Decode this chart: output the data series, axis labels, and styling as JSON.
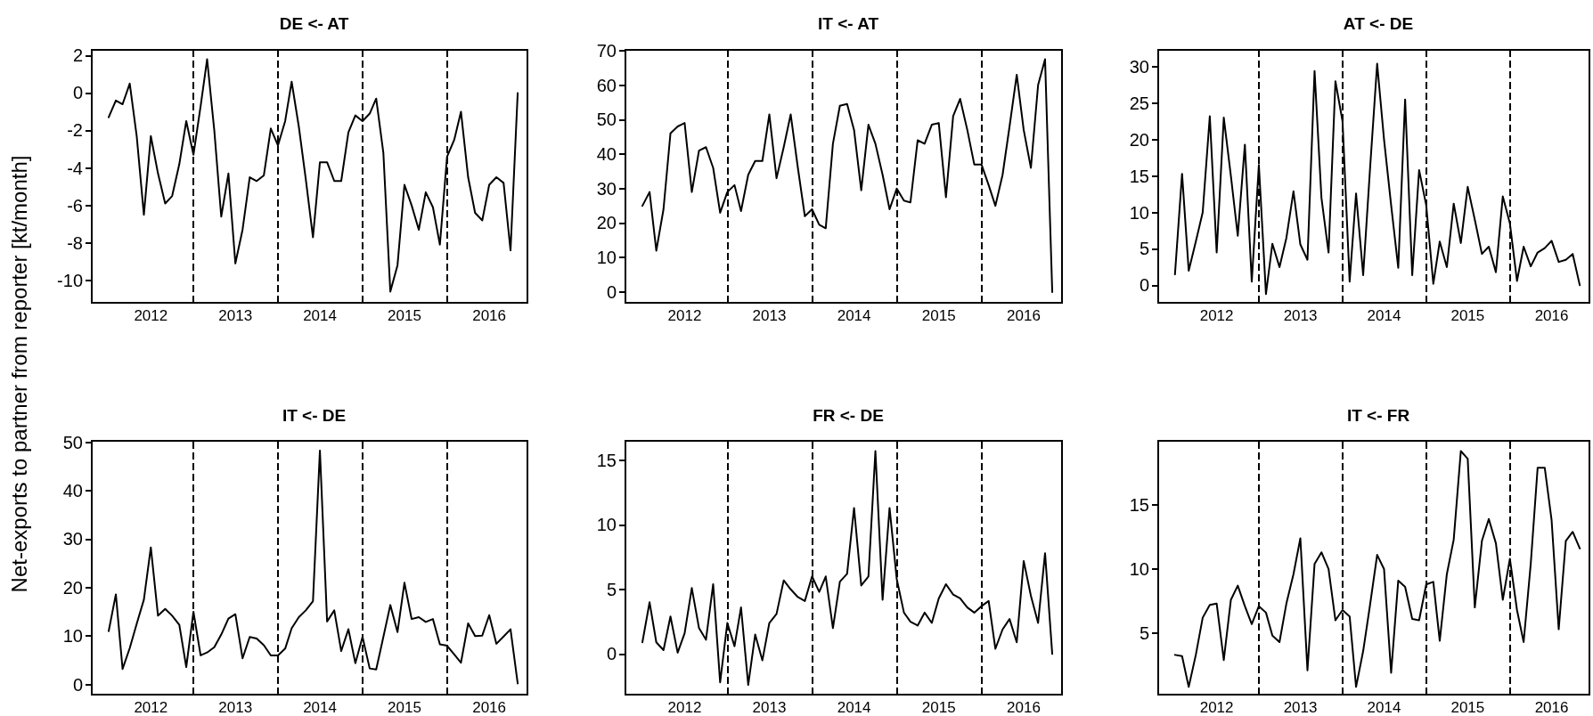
{
  "chart_data": [
    {
      "type": "line",
      "title": "DE <- AT",
      "ylabel": "Net-exports to partner from reporter [kt/month]",
      "marker": "none",
      "grid": false,
      "x": [
        "2012-01",
        "2012-02",
        "2012-03",
        "2012-04",
        "2012-05",
        "2012-06",
        "2012-07",
        "2012-08",
        "2012-09",
        "2012-10",
        "2012-11",
        "2012-12",
        "2013-01",
        "2013-02",
        "2013-03",
        "2013-04",
        "2013-05",
        "2013-06",
        "2013-07",
        "2013-08",
        "2013-09",
        "2013-10",
        "2013-11",
        "2013-12",
        "2014-01",
        "2014-02",
        "2014-03",
        "2014-04",
        "2014-05",
        "2014-06",
        "2014-07",
        "2014-08",
        "2014-09",
        "2014-10",
        "2014-11",
        "2014-12",
        "2015-01",
        "2015-02",
        "2015-03",
        "2015-04",
        "2015-05",
        "2015-06",
        "2015-07",
        "2015-08",
        "2015-09",
        "2015-10",
        "2015-11",
        "2015-12",
        "2016-01",
        "2016-02",
        "2016-03",
        "2016-04",
        "2016-05",
        "2016-06",
        "2016-07",
        "2016-08",
        "2016-09",
        "2016-10",
        "2016-11"
      ],
      "series": [
        {
          "color": "#000000",
          "values": [
            -1.3,
            -0.4,
            -0.6,
            0.5,
            -2.3,
            -6.5,
            -2.3,
            -4.3,
            -5.9,
            -5.5,
            -3.8,
            -1.5,
            -3.3,
            -0.7,
            1.8,
            -2.0,
            -6.6,
            -4.3,
            -9.1,
            -7.3,
            -4.5,
            -4.7,
            -4.4,
            -1.9,
            -2.8,
            -1.5,
            0.6,
            -1.8,
            -4.6,
            -7.7,
            -3.7,
            -3.7,
            -4.7,
            -4.7,
            -2.1,
            -1.2,
            -1.5,
            -1.1,
            -0.3,
            -3.2,
            -10.6,
            -9.2,
            -4.9,
            -6.0,
            -7.3,
            -5.3,
            -6.1,
            -8.1,
            -3.4,
            -2.5,
            -1.0,
            -4.5,
            -6.4,
            -6.8,
            -4.9,
            -4.5,
            -4.8,
            -8.4,
            0.0
          ]
        }
      ],
      "xlim": [
        "2011-10-20",
        "2016-12-13"
      ],
      "xticks": [
        {
          "value": "2012-07-01",
          "label": "2012"
        },
        {
          "value": "2013-07-01",
          "label": "2013"
        },
        {
          "value": "2014-07-01",
          "label": "2014"
        },
        {
          "value": "2015-07-01",
          "label": "2015"
        },
        {
          "value": "2016-07-01",
          "label": "2016"
        }
      ],
      "ylim": [
        -11.2,
        2.3
      ],
      "yticks": [
        -10,
        -8,
        -6,
        -4,
        -2,
        0,
        2
      ],
      "ref_lines": [
        {
          "axis": "x",
          "value": "2013-01-01",
          "color": "#000000",
          "line_style": "dashed"
        },
        {
          "axis": "x",
          "value": "2014-01-01",
          "color": "#000000",
          "line_style": "dashed"
        },
        {
          "axis": "x",
          "value": "2015-01-01",
          "color": "#000000",
          "line_style": "dashed"
        },
        {
          "axis": "x",
          "value": "2016-01-01",
          "color": "#000000",
          "line_style": "dashed"
        }
      ]
    },
    {
      "type": "line",
      "title": "IT <- AT",
      "marker": "none",
      "grid": false,
      "x": [
        "2012-01",
        "2012-02",
        "2012-03",
        "2012-04",
        "2012-05",
        "2012-06",
        "2012-07",
        "2012-08",
        "2012-09",
        "2012-10",
        "2012-11",
        "2012-12",
        "2013-01",
        "2013-02",
        "2013-03",
        "2013-04",
        "2013-05",
        "2013-06",
        "2013-07",
        "2013-08",
        "2013-09",
        "2013-10",
        "2013-11",
        "2013-12",
        "2014-01",
        "2014-02",
        "2014-03",
        "2014-04",
        "2014-05",
        "2014-06",
        "2014-07",
        "2014-08",
        "2014-09",
        "2014-10",
        "2014-11",
        "2014-12",
        "2015-01",
        "2015-02",
        "2015-03",
        "2015-04",
        "2015-05",
        "2015-06",
        "2015-07",
        "2015-08",
        "2015-09",
        "2015-10",
        "2015-11",
        "2015-12",
        "2016-01",
        "2016-02",
        "2016-03",
        "2016-04",
        "2016-05",
        "2016-06",
        "2016-07",
        "2016-08",
        "2016-09",
        "2016-10",
        "2016-11"
      ],
      "series": [
        {
          "color": "#000000",
          "values": [
            25,
            29,
            12,
            24,
            46,
            48,
            49,
            29,
            41,
            42,
            36,
            23,
            29,
            31,
            23.5,
            34,
            38,
            38,
            51.5,
            33,
            42,
            51.5,
            36,
            22,
            24,
            19.5,
            18.5,
            43,
            54,
            54.5,
            47,
            29.5,
            48.5,
            43,
            34,
            24,
            30,
            26.5,
            26,
            44,
            43,
            48.5,
            49,
            27.5,
            51,
            56,
            47,
            37,
            37,
            31,
            25,
            34,
            48,
            63,
            47,
            36,
            60,
            67.5,
            0
          ]
        }
      ],
      "xlim": [
        "2011-10-20",
        "2016-12-13"
      ],
      "xticks": [
        {
          "value": "2012-07-01",
          "label": "2012"
        },
        {
          "value": "2013-07-01",
          "label": "2013"
        },
        {
          "value": "2014-07-01",
          "label": "2014"
        },
        {
          "value": "2015-07-01",
          "label": "2015"
        },
        {
          "value": "2016-07-01",
          "label": "2016"
        }
      ],
      "ylim": [
        -3.1,
        70.2
      ],
      "yticks": [
        0,
        10,
        20,
        30,
        40,
        50,
        60,
        70
      ],
      "ref_lines": [
        {
          "axis": "x",
          "value": "2013-01-01",
          "color": "#000000",
          "line_style": "dashed"
        },
        {
          "axis": "x",
          "value": "2014-01-01",
          "color": "#000000",
          "line_style": "dashed"
        },
        {
          "axis": "x",
          "value": "2015-01-01",
          "color": "#000000",
          "line_style": "dashed"
        },
        {
          "axis": "x",
          "value": "2016-01-01",
          "color": "#000000",
          "line_style": "dashed"
        }
      ]
    },
    {
      "type": "line",
      "title": "AT <- DE",
      "marker": "none",
      "grid": false,
      "x": [
        "2012-01",
        "2012-02",
        "2012-03",
        "2012-04",
        "2012-05",
        "2012-06",
        "2012-07",
        "2012-08",
        "2012-09",
        "2012-10",
        "2012-11",
        "2012-12",
        "2013-01",
        "2013-02",
        "2013-03",
        "2013-04",
        "2013-05",
        "2013-06",
        "2013-07",
        "2013-08",
        "2013-09",
        "2013-10",
        "2013-11",
        "2013-12",
        "2014-01",
        "2014-02",
        "2014-03",
        "2014-04",
        "2014-05",
        "2014-06",
        "2014-07",
        "2014-08",
        "2014-09",
        "2014-10",
        "2014-11",
        "2014-12",
        "2015-01",
        "2015-02",
        "2015-03",
        "2015-04",
        "2015-05",
        "2015-06",
        "2015-07",
        "2015-08",
        "2015-09",
        "2015-10",
        "2015-11",
        "2015-12",
        "2016-01",
        "2016-02",
        "2016-03",
        "2016-04",
        "2016-05",
        "2016-06",
        "2016-07",
        "2016-08",
        "2016-09",
        "2016-10",
        "2016-11"
      ],
      "series": [
        {
          "color": "#000000",
          "values": [
            1.5,
            15.3,
            2,
            6,
            10,
            23.2,
            4.5,
            23,
            15,
            6.8,
            19.3,
            0.5,
            16.5,
            -1.2,
            5.7,
            2.5,
            6.5,
            12.9,
            5.6,
            3.5,
            29.4,
            12,
            4.5,
            28,
            22.5,
            0.5,
            12.6,
            1.4,
            16,
            30.4,
            20,
            11,
            2.4,
            25.5,
            1.4,
            15.8,
            11,
            0.2,
            6,
            2.5,
            11.2,
            5.8,
            13.5,
            9,
            4.3,
            5.3,
            1.8,
            12.2,
            8.5,
            0.6,
            5.3,
            2.6,
            4.5,
            5.1,
            6.1,
            3.2,
            3.5,
            4.3,
            0
          ]
        }
      ],
      "xlim": [
        "2011-10-20",
        "2016-12-13"
      ],
      "xticks": [
        {
          "value": "2012-07-01",
          "label": "2012"
        },
        {
          "value": "2013-07-01",
          "label": "2013"
        },
        {
          "value": "2014-07-01",
          "label": "2014"
        },
        {
          "value": "2015-07-01",
          "label": "2015"
        },
        {
          "value": "2016-07-01",
          "label": "2016"
        }
      ],
      "ylim": [
        -2.4,
        32.3
      ],
      "yticks": [
        0,
        5,
        10,
        15,
        20,
        25,
        30
      ],
      "ref_lines": [
        {
          "axis": "x",
          "value": "2013-01-01",
          "color": "#000000",
          "line_style": "dashed"
        },
        {
          "axis": "x",
          "value": "2014-01-01",
          "color": "#000000",
          "line_style": "dashed"
        },
        {
          "axis": "x",
          "value": "2015-01-01",
          "color": "#000000",
          "line_style": "dashed"
        },
        {
          "axis": "x",
          "value": "2016-01-01",
          "color": "#000000",
          "line_style": "dashed"
        }
      ]
    },
    {
      "type": "line",
      "title": "IT <- DE",
      "marker": "none",
      "grid": false,
      "x": [
        "2012-01",
        "2012-02",
        "2012-03",
        "2012-04",
        "2012-05",
        "2012-06",
        "2012-07",
        "2012-08",
        "2012-09",
        "2012-10",
        "2012-11",
        "2012-12",
        "2013-01",
        "2013-02",
        "2013-03",
        "2013-04",
        "2013-05",
        "2013-06",
        "2013-07",
        "2013-08",
        "2013-09",
        "2013-10",
        "2013-11",
        "2013-12",
        "2014-01",
        "2014-02",
        "2014-03",
        "2014-04",
        "2014-05",
        "2014-06",
        "2014-07",
        "2014-08",
        "2014-09",
        "2014-10",
        "2014-11",
        "2014-12",
        "2015-01",
        "2015-02",
        "2015-03",
        "2015-04",
        "2015-05",
        "2015-06",
        "2015-07",
        "2015-08",
        "2015-09",
        "2015-10",
        "2015-11",
        "2015-12",
        "2016-01",
        "2016-02",
        "2016-03",
        "2016-04",
        "2016-05",
        "2016-06",
        "2016-07",
        "2016-08",
        "2016-09",
        "2016-10",
        "2016-11"
      ],
      "series": [
        {
          "color": "#000000",
          "values": [
            11,
            18.6,
            3.2,
            7.5,
            12.5,
            17.5,
            28.3,
            14.2,
            15.6,
            14.2,
            12.3,
            3.6,
            15,
            6,
            6.6,
            7.7,
            10.3,
            13.6,
            14.5,
            5.4,
            9.8,
            9.5,
            8.1,
            6,
            6,
            7.4,
            11.6,
            13.9,
            15.3,
            17.2,
            48.3,
            13,
            15.3,
            6.9,
            11.4,
            4.4,
            9.8,
            3.3,
            3.1,
            9.8,
            16.4,
            10.8,
            21,
            13.5,
            13.9,
            12.9,
            13.5,
            8.3,
            8,
            6.2,
            4.5,
            12.6,
            10,
            10.1,
            14.3,
            8.4,
            9.9,
            11.4,
            0.2
          ]
        }
      ],
      "xlim": [
        "2011-10-20",
        "2016-12-13"
      ],
      "xticks": [
        {
          "value": "2012-07-01",
          "label": "2012"
        },
        {
          "value": "2013-07-01",
          "label": "2013"
        },
        {
          "value": "2014-07-01",
          "label": "2014"
        },
        {
          "value": "2015-07-01",
          "label": "2015"
        },
        {
          "value": "2016-07-01",
          "label": "2016"
        }
      ],
      "ylim": [
        -2.1,
        50.3
      ],
      "yticks": [
        0,
        10,
        20,
        30,
        40,
        50
      ],
      "ref_lines": [
        {
          "axis": "x",
          "value": "2013-01-01",
          "color": "#000000",
          "line_style": "dashed"
        },
        {
          "axis": "x",
          "value": "2014-01-01",
          "color": "#000000",
          "line_style": "dashed"
        },
        {
          "axis": "x",
          "value": "2015-01-01",
          "color": "#000000",
          "line_style": "dashed"
        },
        {
          "axis": "x",
          "value": "2016-01-01",
          "color": "#000000",
          "line_style": "dashed"
        }
      ]
    },
    {
      "type": "line",
      "title": "FR <- DE",
      "marker": "none",
      "grid": false,
      "x": [
        "2012-01",
        "2012-02",
        "2012-03",
        "2012-04",
        "2012-05",
        "2012-06",
        "2012-07",
        "2012-08",
        "2012-09",
        "2012-10",
        "2012-11",
        "2012-12",
        "2013-01",
        "2013-02",
        "2013-03",
        "2013-04",
        "2013-05",
        "2013-06",
        "2013-07",
        "2013-08",
        "2013-09",
        "2013-10",
        "2013-11",
        "2013-12",
        "2014-01",
        "2014-02",
        "2014-03",
        "2014-04",
        "2014-05",
        "2014-06",
        "2014-07",
        "2014-08",
        "2014-09",
        "2014-10",
        "2014-11",
        "2014-12",
        "2015-01",
        "2015-02",
        "2015-03",
        "2015-04",
        "2015-05",
        "2015-06",
        "2015-07",
        "2015-08",
        "2015-09",
        "2015-10",
        "2015-11",
        "2015-12",
        "2016-01",
        "2016-02",
        "2016-03",
        "2016-04",
        "2016-05",
        "2016-06",
        "2016-07",
        "2016-08",
        "2016-09",
        "2016-10",
        "2016-11"
      ],
      "series": [
        {
          "color": "#000000",
          "values": [
            0.9,
            4,
            0.9,
            0.3,
            2.9,
            0.1,
            1.6,
            5.1,
            2,
            1.1,
            5.4,
            -2.2,
            2.4,
            0.6,
            3.6,
            -2.4,
            1.5,
            -0.5,
            2.4,
            3.1,
            5.7,
            5,
            4.4,
            4.1,
            6,
            4.8,
            6,
            2,
            5.6,
            6.2,
            11.3,
            5.3,
            6,
            15.7,
            4.2,
            11.3,
            5.8,
            3.2,
            2.5,
            2.2,
            3.2,
            2.4,
            4.3,
            5.4,
            4.6,
            4.3,
            3.6,
            3.2,
            3.7,
            4.1,
            0.4,
            1.9,
            2.7,
            0.9,
            7.2,
            4.5,
            2.4,
            7.8,
            0
          ]
        }
      ],
      "xlim": [
        "2011-10-20",
        "2016-12-13"
      ],
      "xticks": [
        {
          "value": "2012-07-01",
          "label": "2012"
        },
        {
          "value": "2013-07-01",
          "label": "2013"
        },
        {
          "value": "2014-07-01",
          "label": "2014"
        },
        {
          "value": "2015-07-01",
          "label": "2015"
        },
        {
          "value": "2016-07-01",
          "label": "2016"
        }
      ],
      "ylim": [
        -3.15,
        16.5
      ],
      "yticks": [
        0,
        5,
        10,
        15
      ],
      "ref_lines": [
        {
          "axis": "x",
          "value": "2013-01-01",
          "color": "#000000",
          "line_style": "dashed"
        },
        {
          "axis": "x",
          "value": "2014-01-01",
          "color": "#000000",
          "line_style": "dashed"
        },
        {
          "axis": "x",
          "value": "2015-01-01",
          "color": "#000000",
          "line_style": "dashed"
        },
        {
          "axis": "x",
          "value": "2016-01-01",
          "color": "#000000",
          "line_style": "dashed"
        }
      ]
    },
    {
      "type": "line",
      "title": "IT <- FR",
      "marker": "none",
      "grid": false,
      "x": [
        "2012-01",
        "2012-02",
        "2012-03",
        "2012-04",
        "2012-05",
        "2012-06",
        "2012-07",
        "2012-08",
        "2012-09",
        "2012-10",
        "2012-11",
        "2012-12",
        "2013-01",
        "2013-02",
        "2013-03",
        "2013-04",
        "2013-05",
        "2013-06",
        "2013-07",
        "2013-08",
        "2013-09",
        "2013-10",
        "2013-11",
        "2013-12",
        "2014-01",
        "2014-02",
        "2014-03",
        "2014-04",
        "2014-05",
        "2014-06",
        "2014-07",
        "2014-08",
        "2014-09",
        "2014-10",
        "2014-11",
        "2014-12",
        "2015-01",
        "2015-02",
        "2015-03",
        "2015-04",
        "2015-05",
        "2015-06",
        "2015-07",
        "2015-08",
        "2015-09",
        "2015-10",
        "2015-11",
        "2015-12",
        "2016-01",
        "2016-02",
        "2016-03",
        "2016-04",
        "2016-05",
        "2016-06",
        "2016-07",
        "2016-08",
        "2016-09",
        "2016-10",
        "2016-11"
      ],
      "series": [
        {
          "color": "#000000",
          "values": [
            3.3,
            3.2,
            0.8,
            3.3,
            6.2,
            7.2,
            7.3,
            2.9,
            7.6,
            8.7,
            7.1,
            5.7,
            7.1,
            6.6,
            4.8,
            4.3,
            7.3,
            9.6,
            12.4,
            2.1,
            10.4,
            11.3,
            10,
            6,
            6.8,
            6.3,
            0.8,
            3.6,
            7.2,
            11.1,
            10,
            1.9,
            9.1,
            8.6,
            6.1,
            6,
            8.8,
            9,
            4.4,
            9.6,
            12.3,
            19.2,
            18.6,
            7,
            12.2,
            13.9,
            12,
            7.6,
            10.8,
            6.8,
            4.3,
            10.4,
            17.9,
            17.9,
            13.8,
            5.3,
            12.2,
            12.9,
            11.6
          ]
        }
      ],
      "xlim": [
        "2011-10-20",
        "2016-12-13"
      ],
      "xticks": [
        {
          "value": "2012-07-01",
          "label": "2012"
        },
        {
          "value": "2013-07-01",
          "label": "2013"
        },
        {
          "value": "2014-07-01",
          "label": "2014"
        },
        {
          "value": "2015-07-01",
          "label": "2015"
        },
        {
          "value": "2016-07-01",
          "label": "2016"
        }
      ],
      "ylim": [
        0.2,
        20
      ],
      "yticks": [
        5,
        10,
        15
      ],
      "ref_lines": [
        {
          "axis": "x",
          "value": "2013-01-01",
          "color": "#000000",
          "line_style": "dashed"
        },
        {
          "axis": "x",
          "value": "2014-01-01",
          "color": "#000000",
          "line_style": "dashed"
        },
        {
          "axis": "x",
          "value": "2015-01-01",
          "color": "#000000",
          "line_style": "dashed"
        },
        {
          "axis": "x",
          "value": "2016-01-01",
          "color": "#000000",
          "line_style": "dashed"
        }
      ]
    }
  ]
}
